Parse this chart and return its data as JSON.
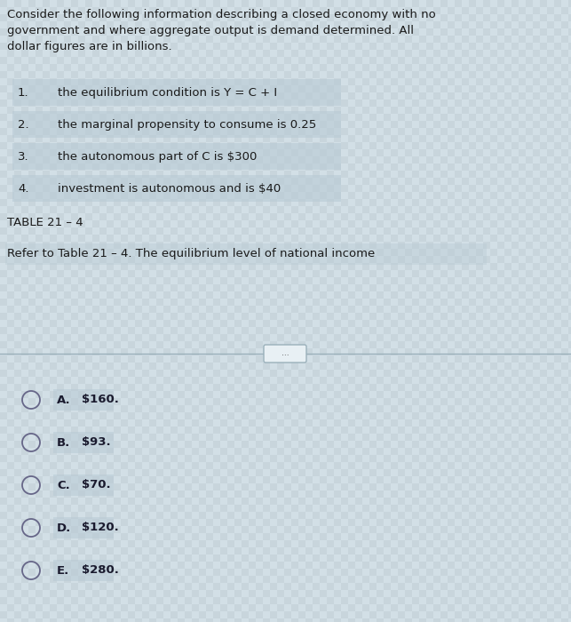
{
  "bg_color": "#ccd9e0",
  "stripe_color1": "#c8d5dc",
  "stripe_color2": "#d2dfe6",
  "upper_bg": "#ccd9e0",
  "lower_bg": "#ccd9e0",
  "intro_text_lines": [
    "Consider the following information describing a closed economy with no",
    "government and where aggregate output is demand determined. All",
    "dollar figures are in billions."
  ],
  "items": [
    {
      "num": "1.",
      "text": "the equilibrium condition is Y = C + I"
    },
    {
      "num": "2.",
      "text": "the marginal propensity to consume is 0.25"
    },
    {
      "num": "3.",
      "text": "the autonomous part of C is $300"
    },
    {
      "num": "4.",
      "text": "investment is autonomous and is $40"
    }
  ],
  "table_label": "TABLE 21 – 4",
  "question_text": "Refer to Table 21 – 4. The equilibrium level of national income",
  "choices": [
    {
      "letter": "A.",
      "text": "$160."
    },
    {
      "letter": "B.",
      "text": "$93."
    },
    {
      "letter": "C.",
      "text": "$70."
    },
    {
      "letter": "D.",
      "text": "$120."
    },
    {
      "letter": "E.",
      "text": "$280."
    }
  ],
  "text_color": "#1a1a1a",
  "choice_letter_color": "#1a1a2e",
  "highlight_color": "#b8cad4",
  "divider_line_color": "#9ab0ba",
  "font_size_intro": 9.5,
  "font_size_items": 9.5,
  "font_size_table": 9.5,
  "font_size_question": 9.5,
  "font_size_choices": 9.5,
  "circle_color": "#666688"
}
